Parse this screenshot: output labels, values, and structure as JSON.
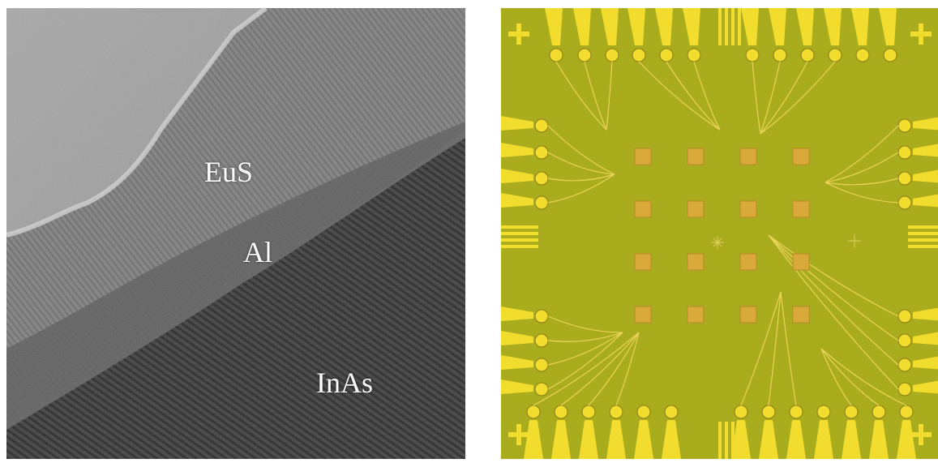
{
  "tem_image": {
    "labels": {
      "eus": "EuS",
      "al": "Al",
      "inas": "InAs"
    }
  },
  "chip_image": {
    "colors": {
      "substrate": "#a9ad1d",
      "pad": "#f2dc2e",
      "square": "#d9a93a",
      "wire": "#ecd25a"
    }
  }
}
